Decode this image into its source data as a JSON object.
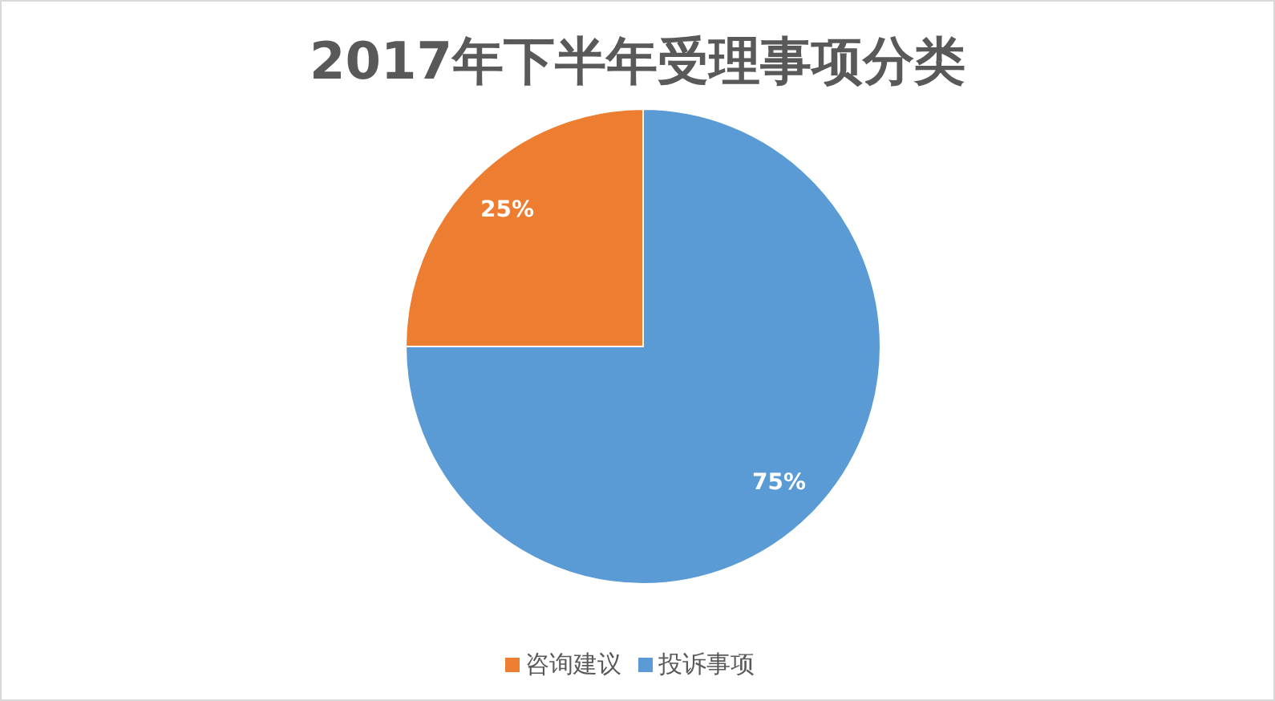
{
  "chart_data": {
    "type": "pie",
    "title": "2017年下半年受理事项分类",
    "categories": [
      "投诉事项",
      "咨询建议"
    ],
    "values": [
      75,
      25
    ],
    "colors": [
      "#5b9bd5",
      "#ed7d31"
    ],
    "value_labels": [
      "75%",
      "25%"
    ],
    "legend": "bottom"
  }
}
